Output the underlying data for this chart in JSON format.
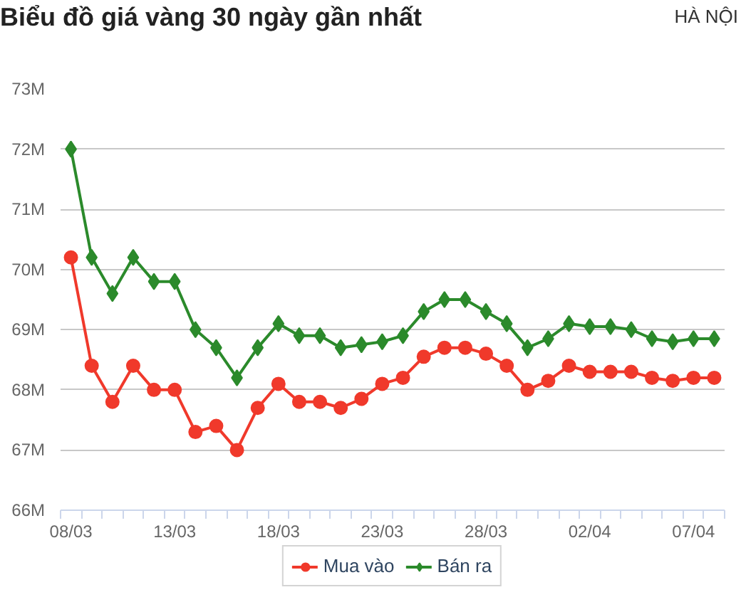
{
  "chart_data": {
    "type": "line",
    "title": "Biểu đồ giá vàng 30 ngày gần nhất",
    "subtitle": "HÀ NỘI",
    "categories": [
      "08/03",
      null,
      null,
      null,
      null,
      "13/03",
      null,
      null,
      null,
      null,
      "18/03",
      null,
      null,
      null,
      null,
      "23/03",
      null,
      null,
      null,
      null,
      "28/03",
      null,
      null,
      null,
      null,
      "02/04",
      null,
      null,
      null,
      null,
      "07/04",
      null
    ],
    "series": [
      {
        "name": "Mua vào",
        "color": "#f0392b",
        "marker": "circle",
        "values": [
          70.2,
          68.4,
          67.8,
          68.4,
          68.0,
          68.0,
          67.3,
          67.4,
          67.0,
          67.7,
          68.1,
          67.8,
          67.8,
          67.7,
          67.85,
          68.1,
          68.2,
          68.55,
          68.7,
          68.7,
          68.6,
          68.4,
          68.0,
          68.15,
          68.4,
          68.3,
          68.3,
          68.3,
          68.2,
          68.15,
          68.2,
          68.2
        ]
      },
      {
        "name": "Bán ra",
        "color": "#2b8a2b",
        "marker": "diamond",
        "values": [
          72.0,
          70.2,
          69.6,
          70.2,
          69.8,
          69.8,
          69.0,
          68.7,
          68.2,
          68.7,
          69.1,
          68.9,
          68.9,
          68.7,
          68.75,
          68.8,
          68.9,
          69.3,
          69.5,
          69.5,
          69.3,
          69.1,
          68.7,
          68.85,
          69.1,
          69.05,
          69.05,
          69.0,
          68.85,
          68.8,
          68.85,
          68.85
        ]
      }
    ],
    "ylim": [
      66,
      73
    ],
    "yticks": [
      {
        "value": 66,
        "label": "66M"
      },
      {
        "value": 67,
        "label": "67M"
      },
      {
        "value": 68,
        "label": "68M"
      },
      {
        "value": 69,
        "label": "69M"
      },
      {
        "value": 70,
        "label": "70M"
      },
      {
        "value": 71,
        "label": "71M"
      },
      {
        "value": 72,
        "label": "72M"
      },
      {
        "value": 73,
        "label": "73M"
      }
    ],
    "grid": "y",
    "legend": "bottom"
  }
}
